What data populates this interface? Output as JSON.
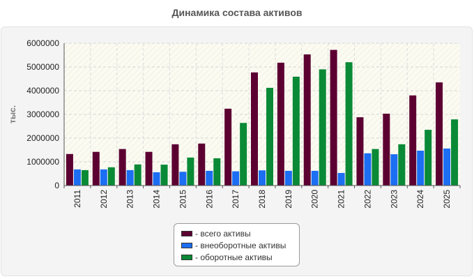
{
  "title": "Динамика состава активов",
  "chart_data": {
    "type": "bar",
    "title": "Динамика состава активов",
    "xlabel": "",
    "ylabel": "тыс.",
    "ylim": [
      0,
      6000000
    ],
    "yticks": [
      0,
      1000000,
      2000000,
      3000000,
      4000000,
      5000000,
      6000000
    ],
    "grid": true,
    "legend_position": "bottom",
    "categories": [
      "2011",
      "2012",
      "2013",
      "2014",
      "2015",
      "2016",
      "2017",
      "2018",
      "2019",
      "2020",
      "2021",
      "2022",
      "2023",
      "2024",
      "2025"
    ],
    "series": [
      {
        "name": "- всего активы",
        "color": "#5c0032",
        "values": [
          1330000,
          1420000,
          1540000,
          1420000,
          1740000,
          1770000,
          3240000,
          4770000,
          5180000,
          5530000,
          5720000,
          2880000,
          3030000,
          3800000,
          4350000
        ]
      },
      {
        "name": "- внеоборотные активы",
        "color": "#1c6ef2",
        "values": [
          680000,
          680000,
          650000,
          560000,
          580000,
          620000,
          600000,
          640000,
          620000,
          620000,
          530000,
          1360000,
          1320000,
          1470000,
          1560000
        ]
      },
      {
        "name": "- оборотные активы",
        "color": "#0a8a36",
        "values": [
          650000,
          770000,
          890000,
          880000,
          1180000,
          1150000,
          2640000,
          4120000,
          4590000,
          4900000,
          5200000,
          1540000,
          1740000,
          2350000,
          2790000
        ]
      }
    ]
  }
}
